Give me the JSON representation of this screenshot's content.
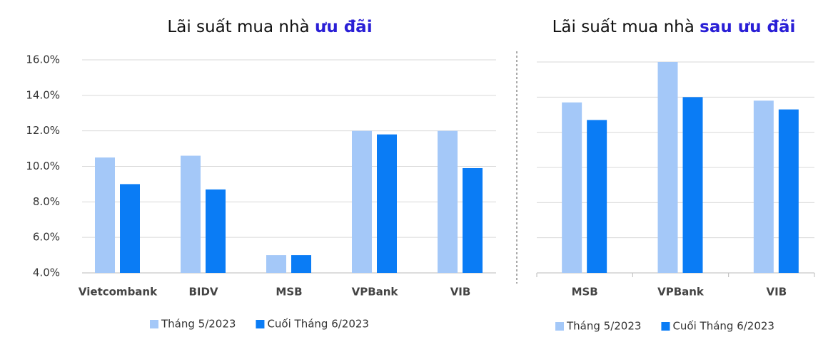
{
  "chart_data": [
    {
      "type": "bar",
      "title": "Lãi suất mua nhà",
      "title_highlight": "ưu đãi",
      "title_highlight_color": "#2a1fd6",
      "categories": [
        "Vietcombank",
        "BIDV",
        "MSB",
        "VPBank",
        "VIB"
      ],
      "series": [
        {
          "name": "Tháng 5/2023",
          "color": "#a4c8f8",
          "values": [
            10.5,
            10.6,
            5.0,
            12.0,
            12.0
          ]
        },
        {
          "name": "Cuối Tháng 6/2023",
          "color": "#0a7cf5",
          "values": [
            9.0,
            8.7,
            5.0,
            11.8,
            9.9
          ]
        }
      ],
      "ylim": [
        4,
        16
      ],
      "yticks": [
        {
          "value": 4,
          "label": "4.0%"
        },
        {
          "value": 6,
          "label": "6.0%"
        },
        {
          "value": 8,
          "label": "8.0%"
        },
        {
          "value": 10,
          "label": "10.0%"
        },
        {
          "value": 12,
          "label": "12.0%"
        },
        {
          "value": 14,
          "label": "14.0%"
        },
        {
          "value": 16,
          "label": "16.0%"
        }
      ],
      "grid": true,
      "tick_labels": true
    },
    {
      "type": "bar",
      "title": "Lãi suất mua nhà",
      "title_highlight": "sau ưu đãi",
      "title_highlight_color": "#2a1fd6",
      "categories": [
        "MSB",
        "VPBank",
        "VIB"
      ],
      "series": [
        {
          "name": "Tháng 5/2023",
          "color": "#a4c8f8",
          "values": [
            13.7,
            16.0,
            13.8
          ]
        },
        {
          "name": "Cuối Tháng 6/2023",
          "color": "#0a7cf5",
          "values": [
            12.7,
            14.0,
            13.3
          ]
        }
      ],
      "ylim": [
        4,
        16
      ],
      "yticks": [
        4,
        6,
        8,
        10,
        12,
        14,
        16
      ],
      "grid": true,
      "tick_labels": false
    }
  ]
}
